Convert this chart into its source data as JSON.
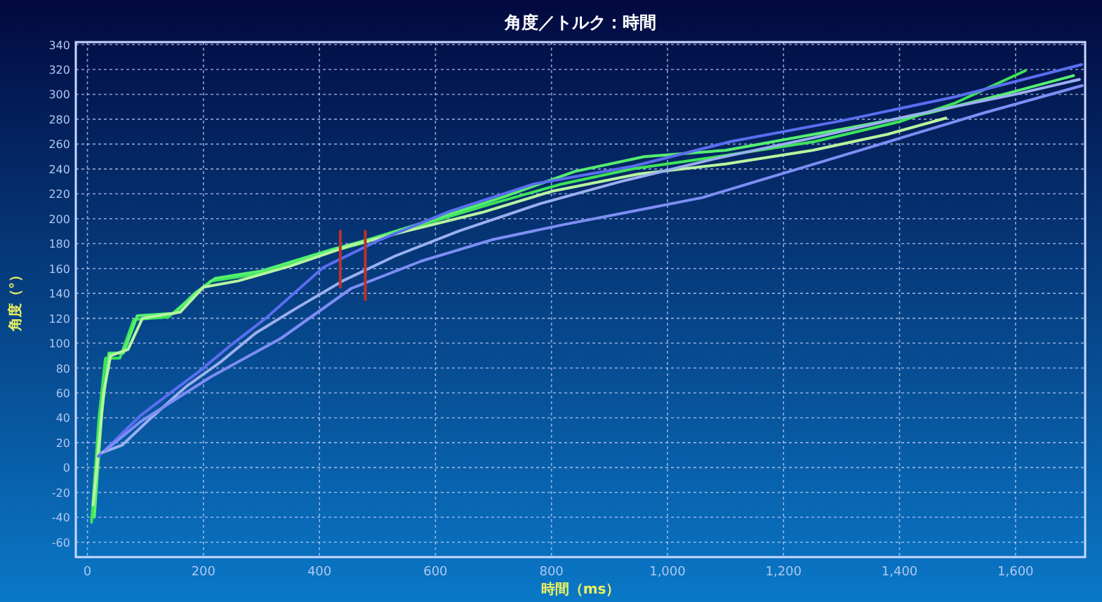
{
  "chart_data": {
    "type": "line",
    "title": "角度／トルク：時間",
    "xlabel": "時間（ms）",
    "ylabel": "角度（°）",
    "xlim": [
      -20,
      1720
    ],
    "ylim": [
      -72,
      342
    ],
    "xticks": [
      0,
      200,
      400,
      600,
      800,
      {
        "value": 1000,
        "label": "1,000"
      },
      {
        "value": 1200,
        "label": "1,200"
      },
      {
        "value": 1400,
        "label": "1,400"
      },
      {
        "value": 1600,
        "label": "1,600"
      }
    ],
    "yticks": [
      -60,
      -40,
      -20,
      0,
      20,
      40,
      60,
      80,
      100,
      120,
      140,
      160,
      180,
      200,
      220,
      240,
      260,
      280,
      300,
      320,
      340
    ],
    "grid": true,
    "marker": "none",
    "line_style": "solid",
    "series": [
      {
        "color": "#3ee45a",
        "x": [
          7,
          20,
          31,
          56,
          80,
          140,
          177,
          213,
          286,
          407,
          479,
          576,
          697,
          818,
          939,
          1060,
          1254,
          1400,
          1496,
          1617
        ],
        "values": [
          -44,
          40,
          88,
          88,
          119,
          121,
          136,
          150,
          155,
          172,
          181,
          195,
          212,
          228,
          240,
          248,
          262,
          278,
          293,
          319
        ]
      },
      {
        "color": "#55f070",
        "x": [
          12,
          25,
          37,
          62,
          86,
          150,
          185,
          220,
          300,
          420,
          490,
          600,
          720,
          840,
          960,
          1100,
          1300,
          1450,
          1580,
          1700
        ],
        "values": [
          -40,
          45,
          92,
          92,
          122,
          124,
          140,
          152,
          158,
          175,
          184,
          200,
          218,
          238,
          250,
          255,
          272,
          285,
          300,
          315
        ]
      },
      {
        "color": "#b8f5a0",
        "x": [
          10,
          28,
          40,
          70,
          95,
          160,
          200,
          260,
          350,
          450,
          550,
          680,
          800,
          950,
          1100,
          1250,
          1380,
          1480
        ],
        "values": [
          -30,
          60,
          90,
          95,
          120,
          125,
          145,
          150,
          162,
          178,
          190,
          205,
          222,
          236,
          244,
          255,
          268,
          281
        ]
      },
      {
        "color": "#5a6ef0",
        "x": [
          19,
          44,
          92,
          140,
          189,
          249,
          310,
          407,
          504,
          625,
          770,
          939,
          1109,
          1303,
          1496,
          1714
        ],
        "values": [
          9,
          20,
          42,
          59,
          76,
          99,
          121,
          161,
          183,
          206,
          228,
          242,
          262,
          279,
          298,
          324
        ]
      },
      {
        "color": "#9bb0f0",
        "x": [
          25,
          60,
          110,
          170,
          230,
          290,
          360,
          440,
          530,
          640,
          780,
          920,
          1080,
          1250,
          1420,
          1600,
          1710
        ],
        "values": [
          12,
          18,
          40,
          65,
          85,
          108,
          128,
          150,
          170,
          190,
          212,
          230,
          248,
          265,
          283,
          300,
          312
        ]
      },
      {
        "color": "#7d8ef5",
        "x": [
          31,
          92,
          213,
          334,
          455,
          576,
          697,
          818,
          939,
          1060,
          1182,
          1303,
          1424,
          1545,
          1715
        ],
        "values": [
          14,
          37,
          73,
          104,
          144,
          166,
          183,
          195,
          206,
          217,
          234,
          251,
          268,
          285,
          307
        ]
      },
      {
        "color": "#c0302a",
        "x": [
          436,
          436
        ],
        "values": [
          145,
          190
        ]
      },
      {
        "color": "#c0302a",
        "x": [
          479,
          479
        ],
        "values": [
          135,
          190
        ]
      }
    ]
  }
}
